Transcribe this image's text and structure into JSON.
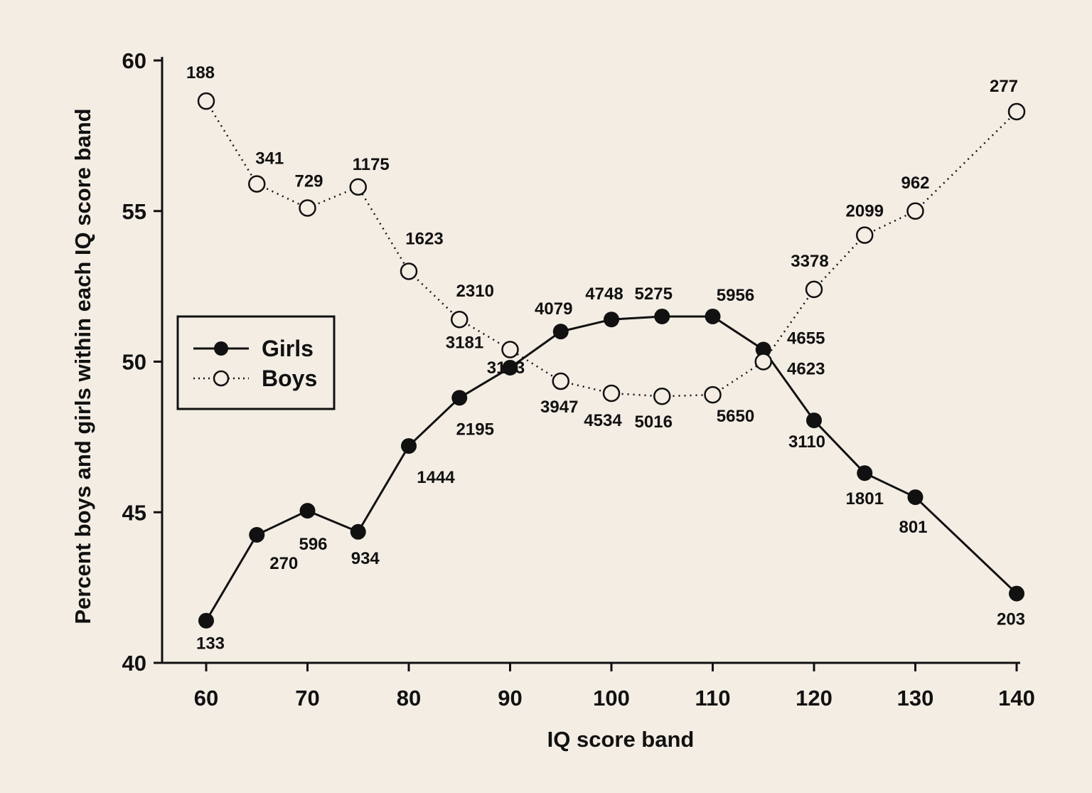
{
  "chart_data": {
    "type": "line",
    "xlabel": "IQ score band",
    "ylabel": "Percent boys and girls within each IQ score band",
    "xlim": [
      60,
      140
    ],
    "ylim": [
      40,
      60
    ],
    "xticks": [
      "60",
      "70",
      "80",
      "90",
      "100",
      "110",
      "120",
      "130",
      "140"
    ],
    "yticks": [
      "40",
      "45",
      "50",
      "55",
      "60"
    ],
    "grid": false,
    "legend_position": "left-middle",
    "x": [
      60,
      65,
      70,
      75,
      80,
      85,
      90,
      95,
      100,
      105,
      110,
      115,
      120,
      125,
      130,
      140
    ],
    "series": [
      {
        "name": "Girls",
        "marker": "filled-circle",
        "line": "solid",
        "values": [
          41.4,
          44.25,
          45.05,
          44.35,
          47.2,
          48.8,
          49.8,
          51.0,
          51.4,
          51.5,
          51.5,
          50.4,
          48.05,
          46.3,
          45.5,
          42.3
        ],
        "labels": [
          "133",
          "270",
          "596",
          "934",
          "1444",
          "2195",
          "3143",
          "4079",
          "4748",
          "5275",
          "5956",
          "4655",
          "3110",
          "1801",
          "801",
          "203"
        ]
      },
      {
        "name": "Boys",
        "marker": "open-circle",
        "line": "dotted",
        "values": [
          58.65,
          55.9,
          55.1,
          55.8,
          53.0,
          51.4,
          50.4,
          49.35,
          48.95,
          48.85,
          48.9,
          50.0,
          52.4,
          54.2,
          55.0,
          58.3
        ],
        "labels": [
          "188",
          "341",
          "729",
          "1175",
          "1623",
          "2310",
          "3181",
          "3947",
          "4534",
          "5016",
          "5650",
          "4623",
          "3378",
          "2099",
          "962",
          "277"
        ]
      }
    ]
  }
}
